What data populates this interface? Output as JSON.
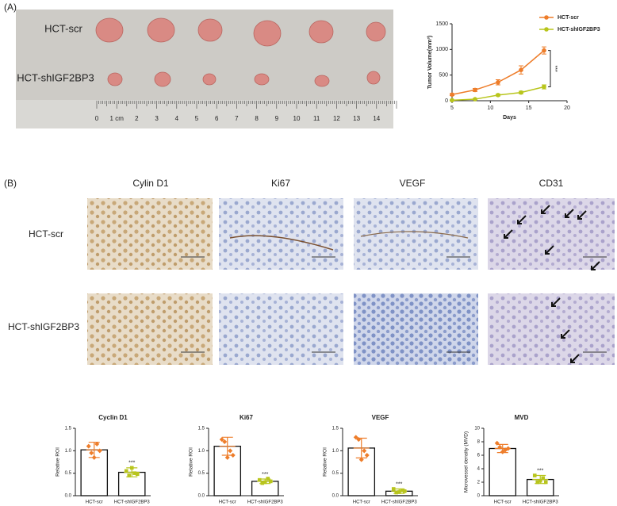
{
  "panel_a": {
    "label": "(A)",
    "rows": [
      "HCT-scr",
      "HCT-shIGF2BP3"
    ],
    "ruler_labels": [
      "0",
      "1 cm",
      "2",
      "3",
      "4",
      "5",
      "6",
      "7",
      "8",
      "9",
      "10",
      "11",
      "12",
      "13",
      "14"
    ]
  },
  "panel_b": {
    "label": "(B)",
    "columns": [
      "Cylin D1",
      "Ki67",
      "VEGF",
      "CD31"
    ],
    "rows": [
      "HCT-scr",
      "HCT-shIGF2BP3"
    ]
  },
  "chart_data": [
    {
      "type": "line",
      "x_label": "Days",
      "y_label": "Tumor Volume(mm³)",
      "annotation": "***",
      "x": [
        5,
        8,
        11,
        14,
        17
      ],
      "series": [
        {
          "name": "HCT-scr",
          "color": "#ee7d2a",
          "values": [
            120,
            210,
            360,
            600,
            980
          ],
          "errors": [
            20,
            30,
            50,
            80,
            70
          ]
        },
        {
          "name": "HCT-shIGF2BP3",
          "color": "#b8c51c",
          "values": [
            10,
            30,
            110,
            160,
            270
          ],
          "errors": [
            5,
            10,
            20,
            25,
            40
          ]
        }
      ],
      "xlim": [
        5,
        20
      ],
      "xticks": [
        5,
        10,
        15,
        20
      ],
      "ylim": [
        0,
        1500
      ],
      "yticks": [
        0,
        500,
        1000,
        1500
      ],
      "legend": "top-right"
    },
    {
      "type": "bar",
      "title": "Cyclin D1",
      "y_label": "Relative ROI",
      "annotation": "***",
      "categories": [
        "HCT-scr",
        "HCT-shIGF2BP3"
      ],
      "colors": [
        "#ee7d2a",
        "#b8c51c"
      ],
      "values": [
        1.02,
        0.52
      ],
      "errors": [
        0.17,
        0.1
      ],
      "points": [
        [
          1.1,
          0.95,
          0.85,
          1.15,
          1.0
        ],
        [
          0.55,
          0.45,
          0.62,
          0.5,
          0.48
        ]
      ],
      "ylim": [
        0,
        1.5
      ],
      "yticks": [
        {
          "value": 0,
          "label": "0.0"
        },
        0.5,
        {
          "value": 1,
          "label": "1.0"
        },
        1.5
      ]
    },
    {
      "type": "bar",
      "title": "Ki67",
      "y_label": "Relative ROI",
      "annotation": "***",
      "categories": [
        "HCT-scr",
        "HCT-shIGF2BP3"
      ],
      "colors": [
        "#ee7d2a",
        "#b8c51c"
      ],
      "values": [
        1.1,
        0.32
      ],
      "errors": [
        0.2,
        0.05
      ],
      "points": [
        [
          1.25,
          1.2,
          0.85,
          1.0,
          0.9
        ],
        [
          0.35,
          0.28,
          0.3,
          0.38,
          0.32
        ]
      ],
      "ylim": [
        0,
        1.5
      ],
      "yticks": [
        {
          "value": 0,
          "label": "0.0"
        },
        0.5,
        {
          "value": 1,
          "label": "1.0"
        },
        1.5
      ]
    },
    {
      "type": "bar",
      "title": "VEGF",
      "y_label": "Relative ROI",
      "annotation": "***",
      "categories": [
        "HCT-scr",
        "HCT-shIGF2BP3"
      ],
      "colors": [
        "#ee7d2a",
        "#b8c51c"
      ],
      "values": [
        1.06,
        0.1
      ],
      "errors": [
        0.22,
        0.05
      ],
      "points": [
        [
          1.3,
          1.25,
          0.8,
          1.0,
          0.9
        ],
        [
          0.15,
          0.07,
          0.08,
          0.12,
          0.1
        ]
      ],
      "ylim": [
        0,
        1.5
      ],
      "yticks": [
        {
          "value": 0,
          "label": "0.0"
        },
        0.5,
        {
          "value": 1,
          "label": "1.0"
        },
        1.5
      ]
    },
    {
      "type": "bar",
      "title": "MVD",
      "y_label": "Microvessel density (MVD)",
      "annotation": "***",
      "categories": [
        "HCT-scr",
        "HCT-shIGF2BP3"
      ],
      "colors": [
        "#ee7d2a",
        "#b8c51c"
      ],
      "values": [
        7.0,
        2.4
      ],
      "errors": [
        0.6,
        0.6
      ],
      "points": [
        [
          7.8,
          7.2,
          6.5,
          6.8,
          7.0
        ],
        [
          3.0,
          2.0,
          2.2,
          2.6,
          2.0
        ]
      ],
      "ylim": [
        0,
        10
      ],
      "yticks": [
        0,
        2,
        4,
        6,
        8,
        10
      ]
    }
  ]
}
